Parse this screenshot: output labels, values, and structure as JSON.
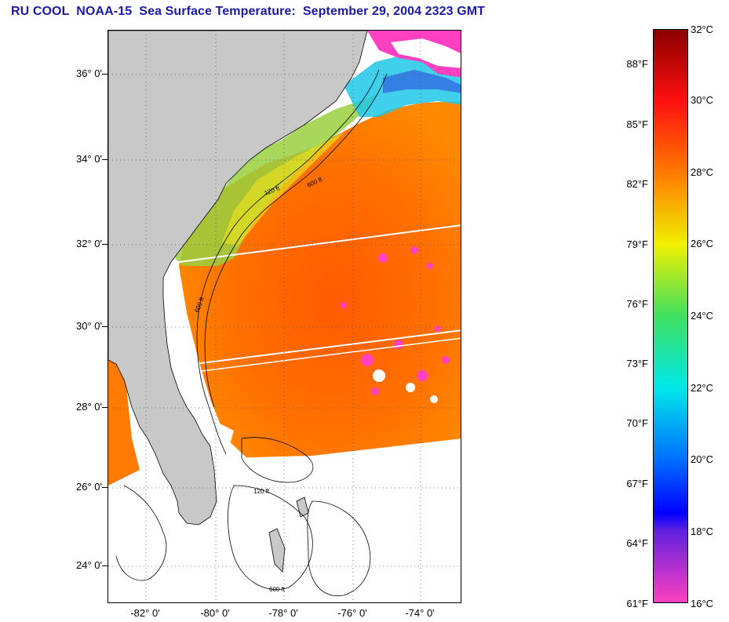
{
  "title": "RU COOL  NOAA-15  Sea Surface Temperature:  September 29, 2004 2323 GMT",
  "map": {
    "latitude_labels": [
      "36° 0'",
      "34° 0'",
      "32° 0'",
      "30° 0'",
      "28° 0'",
      "26° 0'",
      "24° 0'"
    ],
    "longitude_labels": [
      "-82° 0'",
      "-80° 0'",
      "-78° 0'",
      "-76° 0'",
      "-74° 0'"
    ],
    "isobath_labels": [
      "120 ft",
      "600 ft",
      "600 ft",
      "120 ft",
      "600 ft"
    ],
    "colors": {
      "land": "#c8c8c8",
      "no_data": "#ffffff",
      "cloud": "#ff40c0"
    }
  },
  "colorbar": {
    "fahrenheit_labels": [
      "88°F",
      "85°F",
      "82°F",
      "79°F",
      "76°F",
      "73°F",
      "70°F",
      "67°F",
      "64°F",
      "61°F"
    ],
    "celsius_labels": [
      "32°C",
      "30°C",
      "28°C",
      "26°C",
      "24°C",
      "22°C",
      "20°C",
      "18°C",
      "16°C"
    ],
    "gradient_stops": [
      {
        "value_c": 32,
        "color": "#8b0000"
      },
      {
        "value_c": 30,
        "color": "#ff1010"
      },
      {
        "value_c": 28,
        "color": "#ff7a00"
      },
      {
        "value_c": 26,
        "color": "#f0f000"
      },
      {
        "value_c": 24,
        "color": "#40e060"
      },
      {
        "value_c": 22,
        "color": "#00e8e8"
      },
      {
        "value_c": 20,
        "color": "#0070ff"
      },
      {
        "value_c": 18.5,
        "color": "#0000ff"
      },
      {
        "value_c": 18,
        "color": "#6020e0"
      },
      {
        "value_c": 16,
        "color": "#ff40c0"
      }
    ]
  }
}
